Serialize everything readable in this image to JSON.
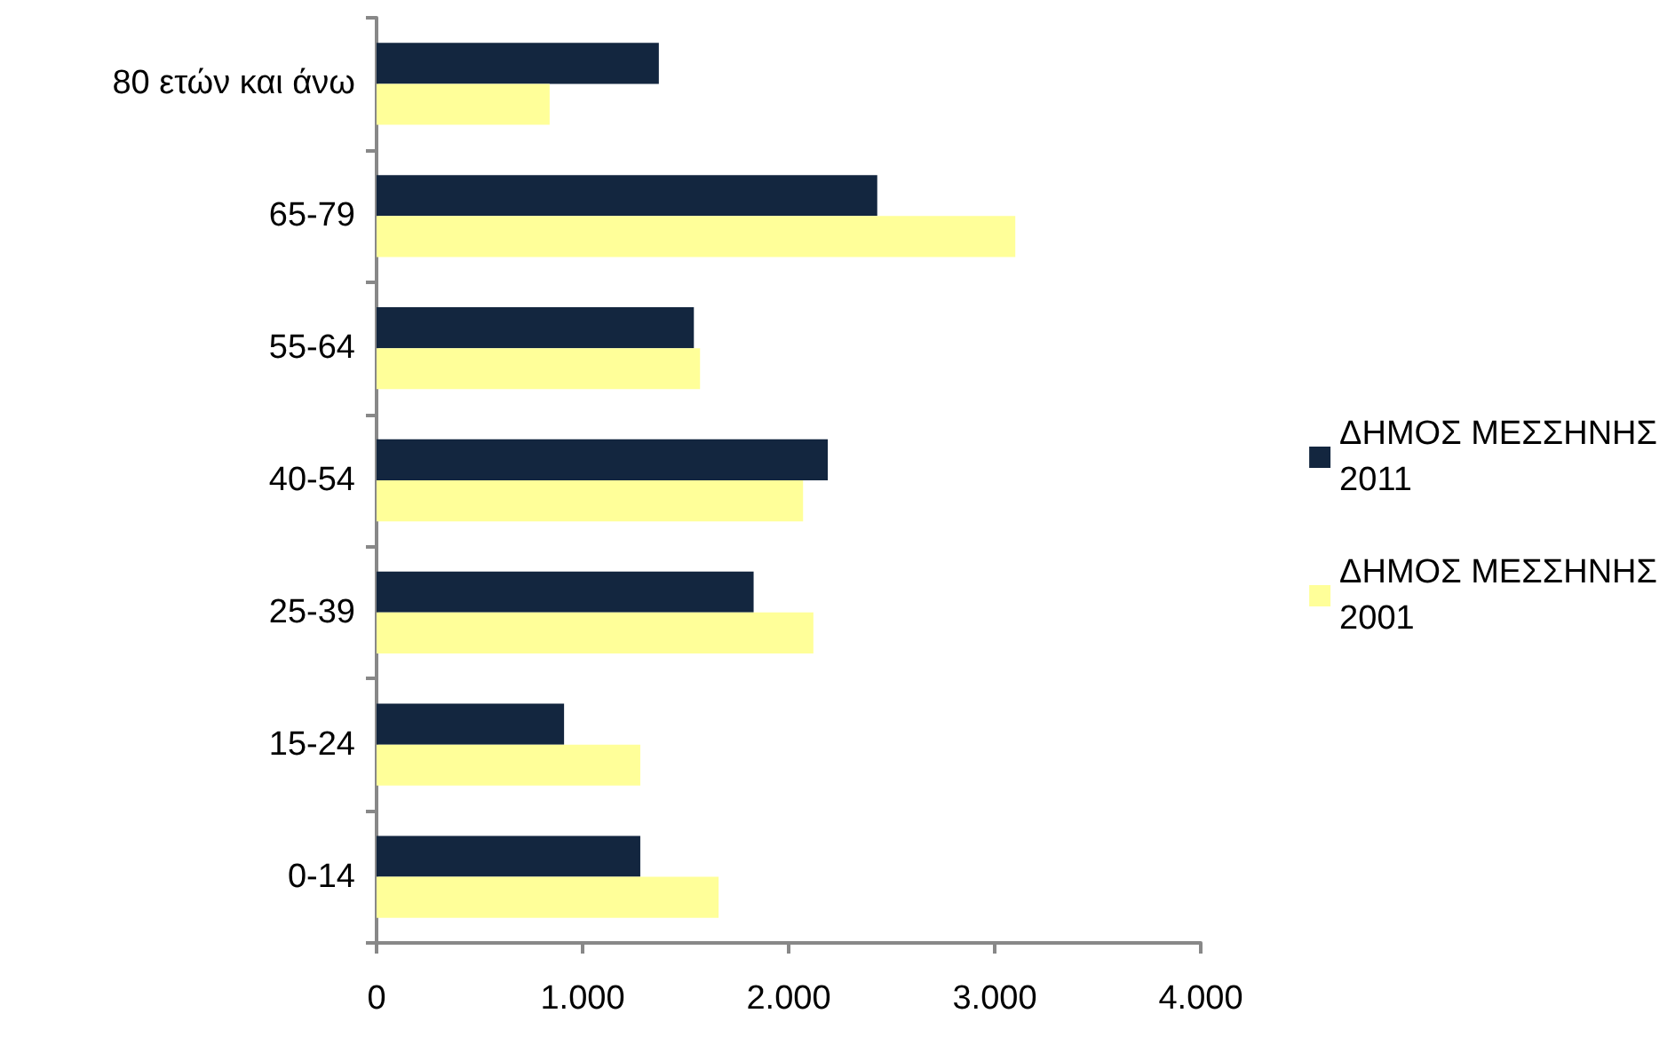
{
  "chart_data": {
    "type": "bar",
    "orientation": "horizontal",
    "categories": [
      "80 ετών και άνω",
      "65-79",
      "55-64",
      "40-54",
      "25-39",
      "15-24",
      "0-14"
    ],
    "series": [
      {
        "name": "ΔΗΜΟΣ ΜΕΣΣΗΝΗΣ 2011",
        "color": "#13263f",
        "values": [
          1370,
          2430,
          1540,
          2190,
          1830,
          910,
          1280
        ]
      },
      {
        "name": "ΔΗΜΟΣ ΜΕΣΣΗΝΗΣ 2001",
        "color": "#ffff99",
        "values": [
          840,
          3100,
          1570,
          2070,
          2120,
          1280,
          1660
        ]
      }
    ],
    "xlim": [
      0,
      4000
    ],
    "xticks": [
      0,
      {
        "value": 1000,
        "label": "1.000"
      },
      {
        "value": 2000,
        "label": "2.000"
      },
      {
        "value": 3000,
        "label": "3.000"
      },
      {
        "value": 4000,
        "label": "4.000"
      }
    ],
    "grid": false,
    "legend": "right"
  }
}
